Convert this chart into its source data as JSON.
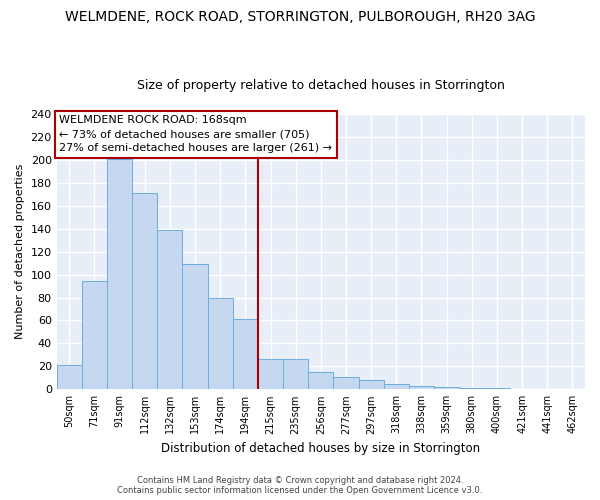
{
  "title": "WELMDENE, ROCK ROAD, STORRINGTON, PULBOROUGH, RH20 3AG",
  "subtitle": "Size of property relative to detached houses in Storrington",
  "xlabel": "Distribution of detached houses by size in Storrington",
  "ylabel": "Number of detached properties",
  "bar_labels": [
    "50sqm",
    "71sqm",
    "91sqm",
    "112sqm",
    "132sqm",
    "153sqm",
    "174sqm",
    "194sqm",
    "215sqm",
    "235sqm",
    "256sqm",
    "277sqm",
    "297sqm",
    "318sqm",
    "338sqm",
    "359sqm",
    "380sqm",
    "400sqm",
    "421sqm",
    "441sqm",
    "462sqm"
  ],
  "bar_values": [
    21,
    94,
    201,
    171,
    139,
    109,
    80,
    61,
    26,
    26,
    15,
    11,
    8,
    5,
    3,
    2,
    1,
    1,
    0,
    0,
    0
  ],
  "bar_color": "#c5d8f0",
  "bar_edge_color": "#6aaee0",
  "vline_color": "#aa0000",
  "ylim": [
    0,
    240
  ],
  "yticks": [
    0,
    20,
    40,
    60,
    80,
    100,
    120,
    140,
    160,
    180,
    200,
    220,
    240
  ],
  "annotation_title": "WELMDENE ROCK ROAD: 168sqm",
  "annotation_line1": "← 73% of detached houses are smaller (705)",
  "annotation_line2": "27% of semi-detached houses are larger (261) →",
  "annotation_box_color": "#ffffff",
  "annotation_box_edge": "#aa0000",
  "footer1": "Contains HM Land Registry data © Crown copyright and database right 2024.",
  "footer2": "Contains public sector information licensed under the Open Government Licence v3.0.",
  "bg_color": "#ffffff",
  "plot_bg_color": "#e8eef8",
  "grid_color": "#ffffff",
  "title_fontsize": 10,
  "subtitle_fontsize": 9,
  "vline_bar_index": 7
}
